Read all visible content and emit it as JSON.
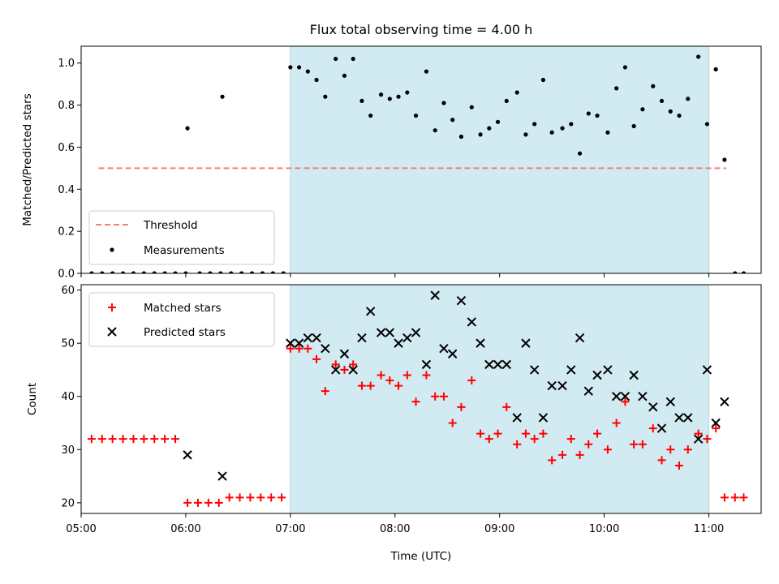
{
  "chart_data": [
    {
      "type": "scatter",
      "title": "Flux total observing time = 4.00 h",
      "xlabel": "",
      "ylabel": "Matched/Predicted stars",
      "xlim": [
        "05:00",
        "11:30"
      ],
      "ylim": [
        0,
        1.08
      ],
      "yticks": [
        0.0,
        0.2,
        0.4,
        0.6,
        0.8,
        1.0
      ],
      "ytick_labels": [
        "0.0",
        "0.2",
        "0.4",
        "0.6",
        "0.8",
        "1.0"
      ],
      "observing_window": {
        "start": "07:00",
        "end": "11:00",
        "color": "#add8e6"
      },
      "legend": {
        "position": "lower left"
      },
      "threshold": {
        "name": "Threshold",
        "color": "#f08080",
        "style": "dashed",
        "y": 0.5,
        "x_start": "05:10",
        "x_end": "11:10"
      },
      "series": [
        {
          "name": "Measurements",
          "color": "#000000",
          "marker": "dot",
          "points": [
            [
              "05:06",
              0.0
            ],
            [
              "05:12",
              0.0
            ],
            [
              "05:18",
              0.0
            ],
            [
              "05:24",
              0.0
            ],
            [
              "05:30",
              0.0
            ],
            [
              "05:36",
              0.0
            ],
            [
              "05:42",
              0.0
            ],
            [
              "05:48",
              0.0
            ],
            [
              "05:54",
              0.0
            ],
            [
              "06:00",
              0.0
            ],
            [
              "06:01",
              0.69
            ],
            [
              "06:08",
              0.0
            ],
            [
              "06:14",
              0.0
            ],
            [
              "06:20",
              0.0
            ],
            [
              "06:21",
              0.84
            ],
            [
              "06:26",
              0.0
            ],
            [
              "06:32",
              0.0
            ],
            [
              "06:38",
              0.0
            ],
            [
              "06:44",
              0.0
            ],
            [
              "06:50",
              0.0
            ],
            [
              "06:56",
              0.0
            ],
            [
              "07:00",
              0.98
            ],
            [
              "07:05",
              0.98
            ],
            [
              "07:10",
              0.96
            ],
            [
              "07:15",
              0.92
            ],
            [
              "07:20",
              0.84
            ],
            [
              "07:26",
              1.02
            ],
            [
              "07:31",
              0.94
            ],
            [
              "07:36",
              1.02
            ],
            [
              "07:41",
              0.82
            ],
            [
              "07:46",
              0.75
            ],
            [
              "07:52",
              0.85
            ],
            [
              "07:57",
              0.83
            ],
            [
              "08:02",
              0.84
            ],
            [
              "08:07",
              0.86
            ],
            [
              "08:12",
              0.75
            ],
            [
              "08:18",
              0.96
            ],
            [
              "08:23",
              0.68
            ],
            [
              "08:28",
              0.81
            ],
            [
              "08:33",
              0.73
            ],
            [
              "08:38",
              0.65
            ],
            [
              "08:44",
              0.79
            ],
            [
              "08:49",
              0.66
            ],
            [
              "08:54",
              0.69
            ],
            [
              "08:59",
              0.72
            ],
            [
              "09:04",
              0.82
            ],
            [
              "09:10",
              0.86
            ],
            [
              "09:15",
              0.66
            ],
            [
              "09:20",
              0.71
            ],
            [
              "09:25",
              0.92
            ],
            [
              "09:30",
              0.67
            ],
            [
              "09:36",
              0.69
            ],
            [
              "09:41",
              0.71
            ],
            [
              "09:46",
              0.57
            ],
            [
              "09:51",
              0.76
            ],
            [
              "09:56",
              0.75
            ],
            [
              "10:02",
              0.67
            ],
            [
              "10:07",
              0.88
            ],
            [
              "10:12",
              0.98
            ],
            [
              "10:17",
              0.7
            ],
            [
              "10:22",
              0.78
            ],
            [
              "10:28",
              0.89
            ],
            [
              "10:33",
              0.82
            ],
            [
              "10:38",
              0.77
            ],
            [
              "10:43",
              0.75
            ],
            [
              "10:48",
              0.83
            ],
            [
              "10:54",
              1.03
            ],
            [
              "10:59",
              0.71
            ],
            [
              "11:04",
              0.97
            ],
            [
              "11:09",
              0.54
            ],
            [
              "11:15",
              0.0
            ],
            [
              "11:20",
              0.0
            ]
          ]
        }
      ]
    },
    {
      "type": "scatter",
      "title": "",
      "xlabel": "Time (UTC)",
      "ylabel": "Count",
      "xlim": [
        "05:00",
        "11:30"
      ],
      "ylim": [
        18,
        61
      ],
      "yticks": [
        20,
        30,
        40,
        50,
        60
      ],
      "ytick_labels": [
        "20",
        "30",
        "40",
        "50",
        "60"
      ],
      "xticks": [
        "05:00",
        "06:00",
        "07:00",
        "08:00",
        "09:00",
        "10:00",
        "11:00"
      ],
      "observing_window": {
        "start": "07:00",
        "end": "11:00",
        "color": "#add8e6"
      },
      "legend": {
        "position": "upper left"
      },
      "series": [
        {
          "name": "Matched stars",
          "color": "#ff0000",
          "marker": "plus",
          "points": [
            [
              "05:06",
              32
            ],
            [
              "05:12",
              32
            ],
            [
              "05:18",
              32
            ],
            [
              "05:24",
              32
            ],
            [
              "05:30",
              32
            ],
            [
              "05:36",
              32
            ],
            [
              "05:42",
              32
            ],
            [
              "05:48",
              32
            ],
            [
              "05:54",
              32
            ],
            [
              "06:01",
              20
            ],
            [
              "06:07",
              20
            ],
            [
              "06:13",
              20
            ],
            [
              "06:19",
              20
            ],
            [
              "06:25",
              21
            ],
            [
              "06:31",
              21
            ],
            [
              "06:37",
              21
            ],
            [
              "06:43",
              21
            ],
            [
              "06:49",
              21
            ],
            [
              "06:55",
              21
            ],
            [
              "07:00",
              49
            ],
            [
              "07:05",
              49
            ],
            [
              "07:10",
              49
            ],
            [
              "07:15",
              47
            ],
            [
              "07:20",
              41
            ],
            [
              "07:26",
              46
            ],
            [
              "07:31",
              45
            ],
            [
              "07:36",
              46
            ],
            [
              "07:41",
              42
            ],
            [
              "07:46",
              42
            ],
            [
              "07:52",
              44
            ],
            [
              "07:57",
              43
            ],
            [
              "08:02",
              42
            ],
            [
              "08:07",
              44
            ],
            [
              "08:12",
              39
            ],
            [
              "08:18",
              44
            ],
            [
              "08:23",
              40
            ],
            [
              "08:28",
              40
            ],
            [
              "08:33",
              35
            ],
            [
              "08:38",
              38
            ],
            [
              "08:44",
              43
            ],
            [
              "08:49",
              33
            ],
            [
              "08:54",
              32
            ],
            [
              "08:59",
              33
            ],
            [
              "09:04",
              38
            ],
            [
              "09:10",
              31
            ],
            [
              "09:15",
              33
            ],
            [
              "09:20",
              32
            ],
            [
              "09:25",
              33
            ],
            [
              "09:30",
              28
            ],
            [
              "09:36",
              29
            ],
            [
              "09:41",
              32
            ],
            [
              "09:46",
              29
            ],
            [
              "09:51",
              31
            ],
            [
              "09:56",
              33
            ],
            [
              "10:02",
              30
            ],
            [
              "10:07",
              35
            ],
            [
              "10:12",
              39
            ],
            [
              "10:17",
              31
            ],
            [
              "10:22",
              31
            ],
            [
              "10:28",
              34
            ],
            [
              "10:33",
              28
            ],
            [
              "10:38",
              30
            ],
            [
              "10:43",
              27
            ],
            [
              "10:48",
              30
            ],
            [
              "10:54",
              33
            ],
            [
              "10:59",
              32
            ],
            [
              "11:04",
              34
            ],
            [
              "11:09",
              21
            ],
            [
              "11:15",
              21
            ],
            [
              "11:20",
              21
            ]
          ]
        },
        {
          "name": "Predicted stars",
          "color": "#000000",
          "marker": "x",
          "points": [
            [
              "06:01",
              29
            ],
            [
              "06:21",
              25
            ],
            [
              "07:00",
              50
            ],
            [
              "07:05",
              50
            ],
            [
              "07:10",
              51
            ],
            [
              "07:15",
              51
            ],
            [
              "07:20",
              49
            ],
            [
              "07:26",
              45
            ],
            [
              "07:31",
              48
            ],
            [
              "07:36",
              45
            ],
            [
              "07:41",
              51
            ],
            [
              "07:46",
              56
            ],
            [
              "07:52",
              52
            ],
            [
              "07:57",
              52
            ],
            [
              "08:02",
              50
            ],
            [
              "08:07",
              51
            ],
            [
              "08:12",
              52
            ],
            [
              "08:18",
              46
            ],
            [
              "08:23",
              59
            ],
            [
              "08:28",
              49
            ],
            [
              "08:33",
              48
            ],
            [
              "08:38",
              58
            ],
            [
              "08:44",
              54
            ],
            [
              "08:49",
              50
            ],
            [
              "08:54",
              46
            ],
            [
              "08:59",
              46
            ],
            [
              "09:04",
              46
            ],
            [
              "09:10",
              36
            ],
            [
              "09:15",
              50
            ],
            [
              "09:20",
              45
            ],
            [
              "09:25",
              36
            ],
            [
              "09:30",
              42
            ],
            [
              "09:36",
              42
            ],
            [
              "09:41",
              45
            ],
            [
              "09:46",
              51
            ],
            [
              "09:51",
              41
            ],
            [
              "09:56",
              44
            ],
            [
              "10:02",
              45
            ],
            [
              "10:07",
              40
            ],
            [
              "10:12",
              40
            ],
            [
              "10:17",
              44
            ],
            [
              "10:22",
              40
            ],
            [
              "10:28",
              38
            ],
            [
              "10:33",
              34
            ],
            [
              "10:38",
              39
            ],
            [
              "10:43",
              36
            ],
            [
              "10:48",
              36
            ],
            [
              "10:54",
              32
            ],
            [
              "10:59",
              45
            ],
            [
              "11:04",
              35
            ],
            [
              "11:09",
              39
            ]
          ]
        }
      ]
    }
  ]
}
